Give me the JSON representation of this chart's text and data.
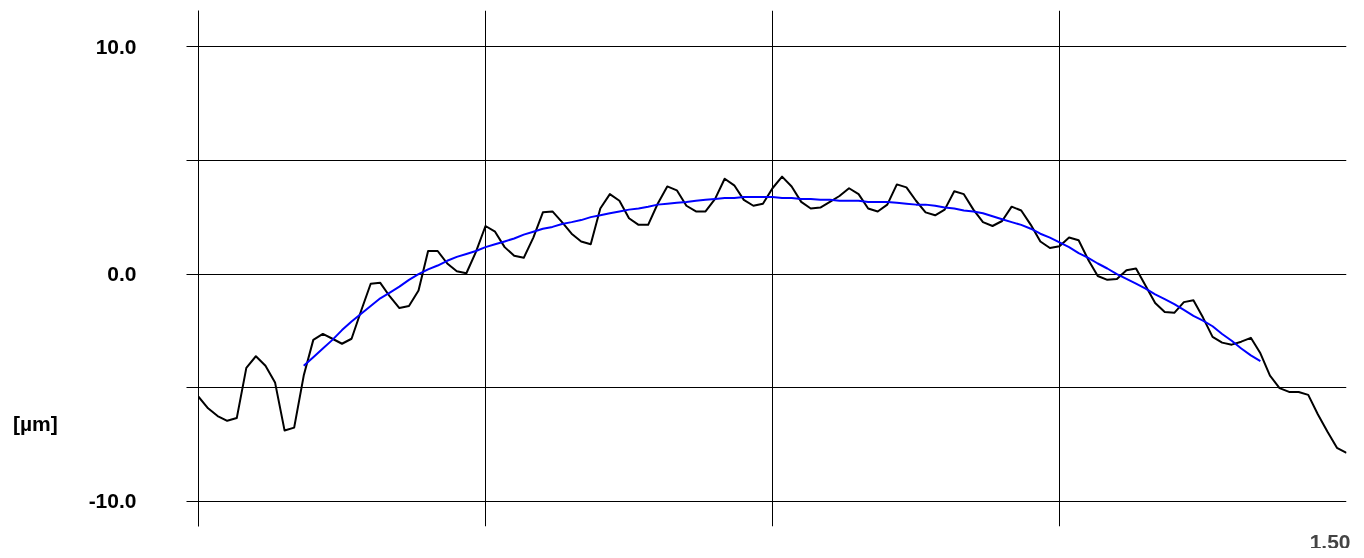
{
  "chart_data": {
    "type": "line",
    "ylabel": "[µm]",
    "annotations": [
      "1.50"
    ],
    "ylim": [
      -11.1,
      11.6
    ],
    "yticks": [
      {
        "value": -10,
        "label": "-10.0"
      },
      {
        "value": -5,
        "label": null
      },
      {
        "value": 0,
        "label": "0.0"
      },
      {
        "value": 5,
        "label": null
      },
      {
        "value": 10,
        "label": "10.0"
      }
    ],
    "grid": true,
    "marker": "none",
    "line_style": "solid",
    "categories": [
      null,
      null,
      null,
      null,
      null,
      null,
      null,
      null,
      null,
      null,
      null,
      null,
      null,
      null,
      null,
      null,
      null,
      null,
      null,
      null,
      null,
      null,
      null,
      null,
      null,
      null,
      null,
      null,
      null,
      null,
      null,
      null,
      null,
      null,
      null,
      null,
      null,
      null,
      null,
      null,
      null,
      null,
      null,
      null,
      null,
      null,
      null,
      null,
      null,
      null,
      null,
      null,
      null,
      null,
      null,
      null,
      null,
      null,
      null,
      null,
      null,
      null,
      null,
      null,
      null,
      null,
      null,
      null,
      null,
      null,
      null,
      null,
      null,
      null,
      null,
      null,
      null,
      null,
      null,
      null,
      null,
      null,
      null,
      null,
      null,
      null,
      null,
      null,
      null,
      null,
      null,
      null,
      null,
      null,
      null,
      null,
      null,
      null,
      null,
      null,
      null,
      null,
      null,
      null,
      null,
      null,
      null,
      null,
      null,
      null,
      null,
      null,
      null,
      null,
      null,
      null,
      null,
      null,
      null,
      null,
      null
    ],
    "series": [
      {
        "color": "#000000",
        "values": [
          -5.39,
          -5.9,
          -6.24,
          -6.45,
          -6.33,
          -4.12,
          -3.61,
          -4.03,
          -4.76,
          -6.88,
          -6.75,
          -4.46,
          -2.89,
          -2.63,
          -2.84,
          -3.06,
          -2.84,
          -1.61,
          -0.42,
          -0.38,
          -0.98,
          -1.49,
          -1.4,
          -0.72,
          1.02,
          1.02,
          0.47,
          0.13,
          0.04,
          0.98,
          2.12,
          1.87,
          1.19,
          0.81,
          0.72,
          1.61,
          2.72,
          2.76,
          2.29,
          1.78,
          1.44,
          1.32,
          2.89,
          3.52,
          3.23,
          2.46,
          2.17,
          2.17,
          3.1,
          3.86,
          3.69,
          3.01,
          2.76,
          2.76,
          3.31,
          4.2,
          3.91,
          3.27,
          3.01,
          3.1,
          3.78,
          4.29,
          3.86,
          3.18,
          2.89,
          2.93,
          3.18,
          3.44,
          3.78,
          3.52,
          2.89,
          2.76,
          3.06,
          3.95,
          3.82,
          3.23,
          2.72,
          2.59,
          2.84,
          3.65,
          3.52,
          2.84,
          2.29,
          2.12,
          2.34,
          2.97,
          2.8,
          2.17,
          1.44,
          1.15,
          1.23,
          1.61,
          1.49,
          0.64,
          -0.08,
          -0.25,
          -0.21,
          0.17,
          0.25,
          -0.51,
          -1.27,
          -1.66,
          -1.7,
          -1.23,
          -1.15,
          -1.91,
          -2.76,
          -3.01,
          -3.1,
          -2.97,
          -2.8,
          -3.48,
          -4.46,
          -5.01,
          -5.18,
          -5.18,
          -5.31,
          -6.16,
          -6.92,
          -7.64,
          -7.86
        ]
      },
      {
        "color": "#0000ff",
        "values": [
          null,
          null,
          null,
          null,
          null,
          null,
          null,
          null,
          null,
          null,
          null,
          -4.03,
          -3.65,
          -3.27,
          -2.89,
          -2.46,
          -2.08,
          -1.74,
          -1.4,
          -1.06,
          -0.81,
          -0.55,
          -0.25,
          0,
          0.21,
          0.38,
          0.59,
          0.76,
          0.89,
          1.02,
          1.19,
          1.32,
          1.44,
          1.57,
          1.74,
          1.87,
          2.0,
          2.08,
          2.21,
          2.29,
          2.38,
          2.51,
          2.59,
          2.68,
          2.76,
          2.84,
          2.89,
          2.97,
          3.06,
          3.1,
          3.14,
          3.18,
          3.23,
          3.27,
          3.31,
          3.35,
          3.35,
          3.4,
          3.4,
          3.4,
          3.4,
          3.35,
          3.35,
          3.31,
          3.31,
          3.27,
          3.27,
          3.23,
          3.23,
          3.23,
          3.18,
          3.18,
          3.18,
          3.14,
          3.1,
          3.06,
          3.06,
          3.01,
          2.93,
          2.89,
          2.8,
          2.76,
          2.68,
          2.55,
          2.42,
          2.29,
          2.17,
          2.0,
          1.78,
          1.61,
          1.4,
          1.19,
          0.93,
          0.72,
          0.47,
          0.25,
          0,
          -0.21,
          -0.42,
          -0.64,
          -0.89,
          -1.1,
          -1.32,
          -1.57,
          -1.83,
          -2.04,
          -2.29,
          -2.63,
          -2.93,
          -3.27,
          -3.57,
          -3.82,
          null,
          null,
          null,
          null,
          null,
          null,
          null,
          null,
          null
        ]
      }
    ]
  }
}
